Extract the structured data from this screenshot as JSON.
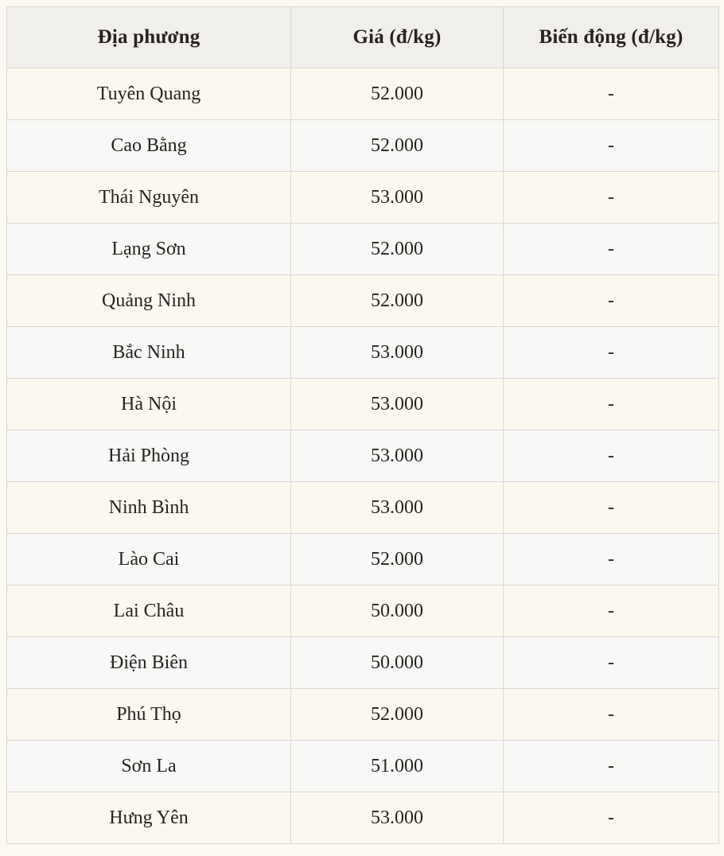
{
  "chart_data": {
    "type": "table",
    "title": "",
    "columns": [
      "Địa phương",
      "Giá (đ/kg)",
      "Biến động (đ/kg)"
    ],
    "rows": [
      [
        "Tuyên Quang",
        "52.000",
        "-"
      ],
      [
        "Cao Bằng",
        "52.000",
        "-"
      ],
      [
        "Thái Nguyên",
        "53.000",
        "-"
      ],
      [
        "Lạng Sơn",
        "52.000",
        "-"
      ],
      [
        "Quảng Ninh",
        "52.000",
        "-"
      ],
      [
        "Bắc Ninh",
        "53.000",
        "-"
      ],
      [
        "Hà Nội",
        "53.000",
        "-"
      ],
      [
        "Hải Phòng",
        "53.000",
        "-"
      ],
      [
        "Ninh Bình",
        "53.000",
        "-"
      ],
      [
        "Lào Cai",
        "52.000",
        "-"
      ],
      [
        "Lai Châu",
        "50.000",
        "-"
      ],
      [
        "Điện Biên",
        "50.000",
        "-"
      ],
      [
        "Phú Thọ",
        "52.000",
        "-"
      ],
      [
        "Sơn La",
        "51.000",
        "-"
      ],
      [
        "Hưng Yên",
        "53.000",
        "-"
      ]
    ],
    "layout": {
      "header_background": "#f0efeb",
      "row_background_odd": "#fbf8f0",
      "row_background_even": "#f8f8f6",
      "border_color": "#d9d6d1",
      "text_color": "#262321",
      "page_background": "#fcf9f2"
    }
  }
}
